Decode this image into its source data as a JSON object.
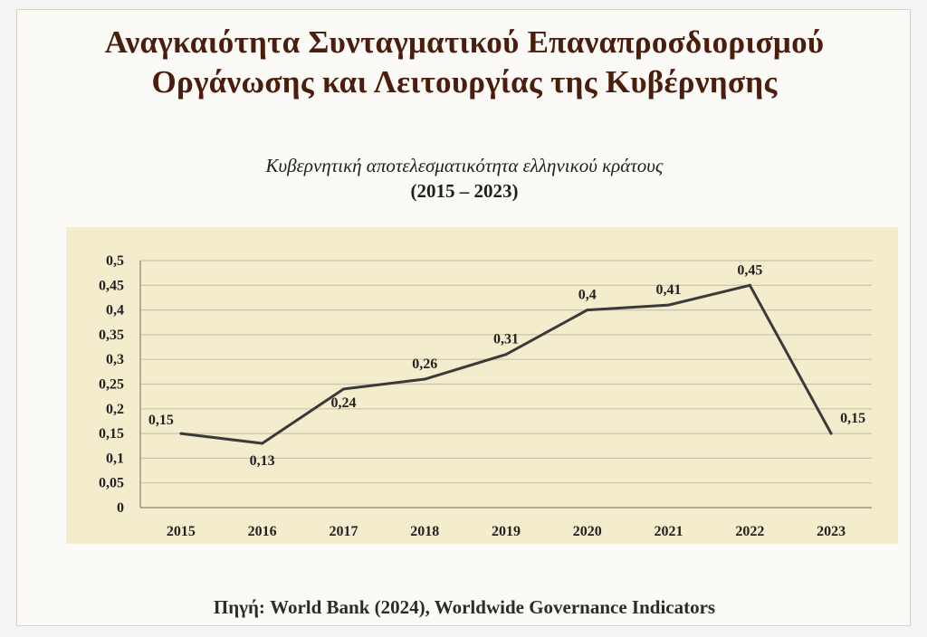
{
  "title_line_1": "Αναγκαιότητα Συνταγματικού Επαναπροσδιορισμού",
  "title_line_2": "Οργάνωσης και Λειτουργίας της Κυβέρνησης",
  "source": "Πηγή: World Bank (2024), Worldwide Governance Indicators",
  "colors": {
    "plot_background": "#f3eccd",
    "line": "#3a3a3a",
    "grid": "#c9c3ad",
    "title": "#4a1d0c"
  },
  "chart_data": {
    "type": "line",
    "title": "Κυβερνητική αποτελεσματικότητα ελληνικού κράτους",
    "subtitle": "(2015 – 2023)",
    "xlabel": "",
    "ylabel": "",
    "categories": [
      "2015",
      "2016",
      "2017",
      "2018",
      "2019",
      "2020",
      "2021",
      "2022",
      "2023"
    ],
    "series": [
      {
        "values": [
          0.15,
          0.13,
          0.24,
          0.26,
          0.31,
          0.4,
          0.41,
          0.45,
          0.15
        ],
        "labels": [
          "0,15",
          "0,13",
          "0,24",
          "0,26",
          "0,31",
          "0,4",
          "0,41",
          "0,45",
          "0,15"
        ]
      }
    ],
    "ylim": [
      0,
      0.5
    ],
    "yticks": [
      0,
      0.05,
      0.1,
      0.15,
      0.2,
      0.25,
      0.3,
      0.35,
      0.4,
      0.45,
      0.5
    ],
    "ytick_labels": [
      "0",
      "0,05",
      "0,1",
      "0,15",
      "0,2",
      "0,25",
      "0,3",
      "0,35",
      "0,4",
      "0,45",
      "0,5"
    ],
    "grid": true,
    "legend": "none"
  }
}
